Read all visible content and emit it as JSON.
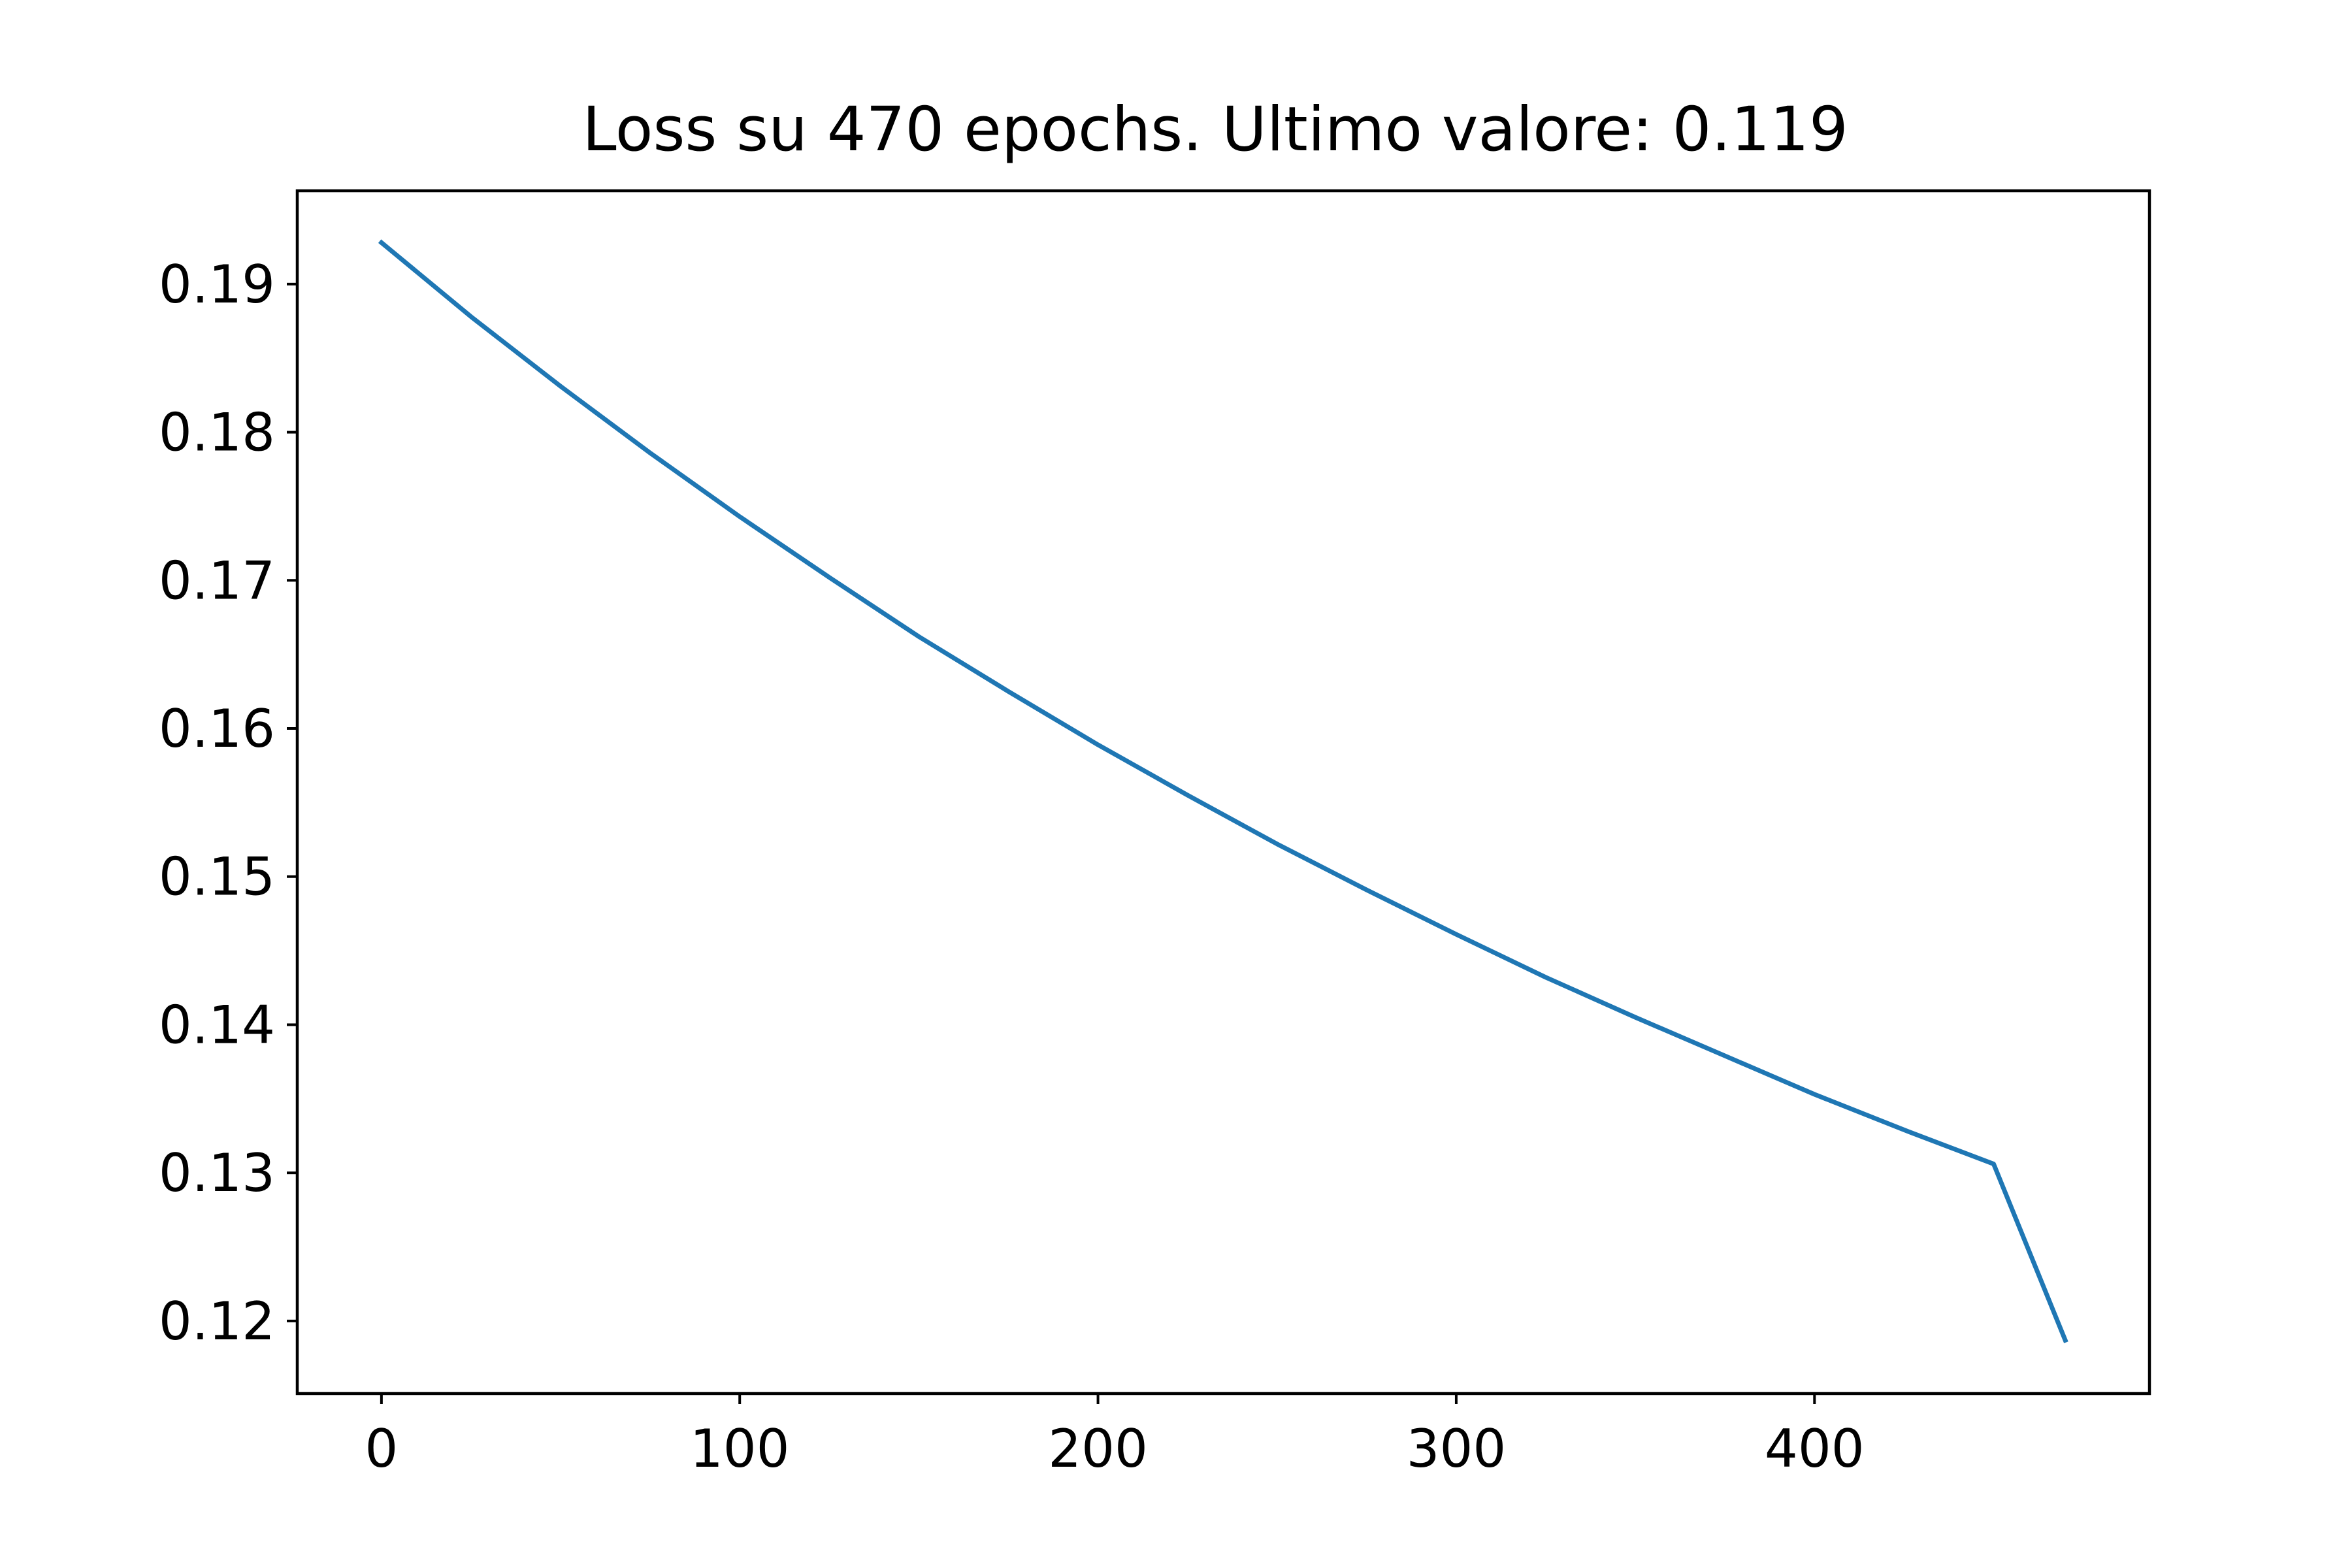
{
  "chart_data": {
    "type": "line",
    "title": "Loss su 470 epochs. Ultimo valore: 0.119",
    "xlabel": "",
    "ylabel": "",
    "xlim": [
      -23.5,
      493.5
    ],
    "ylim": [
      0.1151,
      0.1963
    ],
    "grid": false,
    "legend": "none",
    "x_ticks": [
      {
        "value": 0,
        "label": "0"
      },
      {
        "value": 100,
        "label": "100"
      },
      {
        "value": 200,
        "label": "200"
      },
      {
        "value": 300,
        "label": "300"
      },
      {
        "value": 400,
        "label": "400"
      }
    ],
    "y_ticks": [
      {
        "value": 0.12,
        "label": "0.12"
      },
      {
        "value": 0.13,
        "label": "0.13"
      },
      {
        "value": 0.14,
        "label": "0.14"
      },
      {
        "value": 0.15,
        "label": "0.15"
      },
      {
        "value": 0.16,
        "label": "0.16"
      },
      {
        "value": 0.17,
        "label": "0.17"
      },
      {
        "value": 0.18,
        "label": "0.18"
      },
      {
        "value": 0.19,
        "label": "0.19"
      }
    ],
    "series": [
      {
        "color": "#1f77b4",
        "x": [
          0,
          25,
          50,
          75,
          100,
          125,
          150,
          175,
          200,
          225,
          250,
          275,
          300,
          325,
          350,
          375,
          400,
          425,
          450,
          470
        ],
        "y": [
          0.1928,
          0.1878,
          0.1831,
          0.1786,
          0.1743,
          0.1702,
          0.1662,
          0.1625,
          0.1589,
          0.1555,
          0.1522,
          0.1491,
          0.1461,
          0.1432,
          0.1405,
          0.1379,
          0.1353,
          0.1329,
          0.1306,
          0.1187
        ]
      }
    ]
  }
}
